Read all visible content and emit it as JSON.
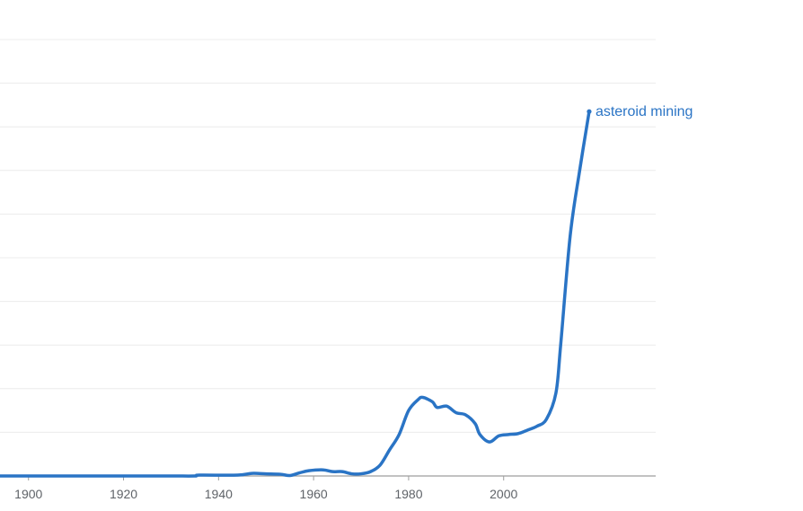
{
  "chart_data": {
    "type": "line",
    "x_ticks": [
      "1900",
      "1920",
      "1940",
      "1960",
      "1980",
      "2000"
    ],
    "xlim": [
      1894,
      2032
    ],
    "ylim": [
      0,
      10
    ],
    "grid": true,
    "series": [
      {
        "name": "asteroid mining",
        "color": "#2a74c5",
        "points": [
          [
            1894,
            0.0
          ],
          [
            1900,
            0.0
          ],
          [
            1910,
            0.0
          ],
          [
            1920,
            0.0
          ],
          [
            1930,
            0.0
          ],
          [
            1935,
            0.0
          ],
          [
            1936,
            0.02
          ],
          [
            1944,
            0.02
          ],
          [
            1947,
            0.06
          ],
          [
            1950,
            0.05
          ],
          [
            1953,
            0.04
          ],
          [
            1955,
            0.01
          ],
          [
            1957,
            0.07
          ],
          [
            1959,
            0.12
          ],
          [
            1962,
            0.14
          ],
          [
            1964,
            0.1
          ],
          [
            1966,
            0.1
          ],
          [
            1968,
            0.05
          ],
          [
            1970,
            0.05
          ],
          [
            1972,
            0.1
          ],
          [
            1974,
            0.25
          ],
          [
            1976,
            0.6
          ],
          [
            1978,
            0.95
          ],
          [
            1980,
            1.5
          ],
          [
            1982,
            1.75
          ],
          [
            1983,
            1.8
          ],
          [
            1985,
            1.7
          ],
          [
            1986,
            1.57
          ],
          [
            1988,
            1.6
          ],
          [
            1990,
            1.45
          ],
          [
            1992,
            1.4
          ],
          [
            1994,
            1.2
          ],
          [
            1995,
            0.95
          ],
          [
            1997,
            0.78
          ],
          [
            1999,
            0.92
          ],
          [
            2001,
            0.95
          ],
          [
            2003,
            0.97
          ],
          [
            2005,
            1.05
          ],
          [
            2007,
            1.14
          ],
          [
            2009,
            1.3
          ],
          [
            2011,
            1.9
          ],
          [
            2012,
            3.0
          ],
          [
            2014,
            5.5
          ],
          [
            2016,
            7.0
          ],
          [
            2018,
            8.35
          ]
        ]
      }
    ]
  }
}
